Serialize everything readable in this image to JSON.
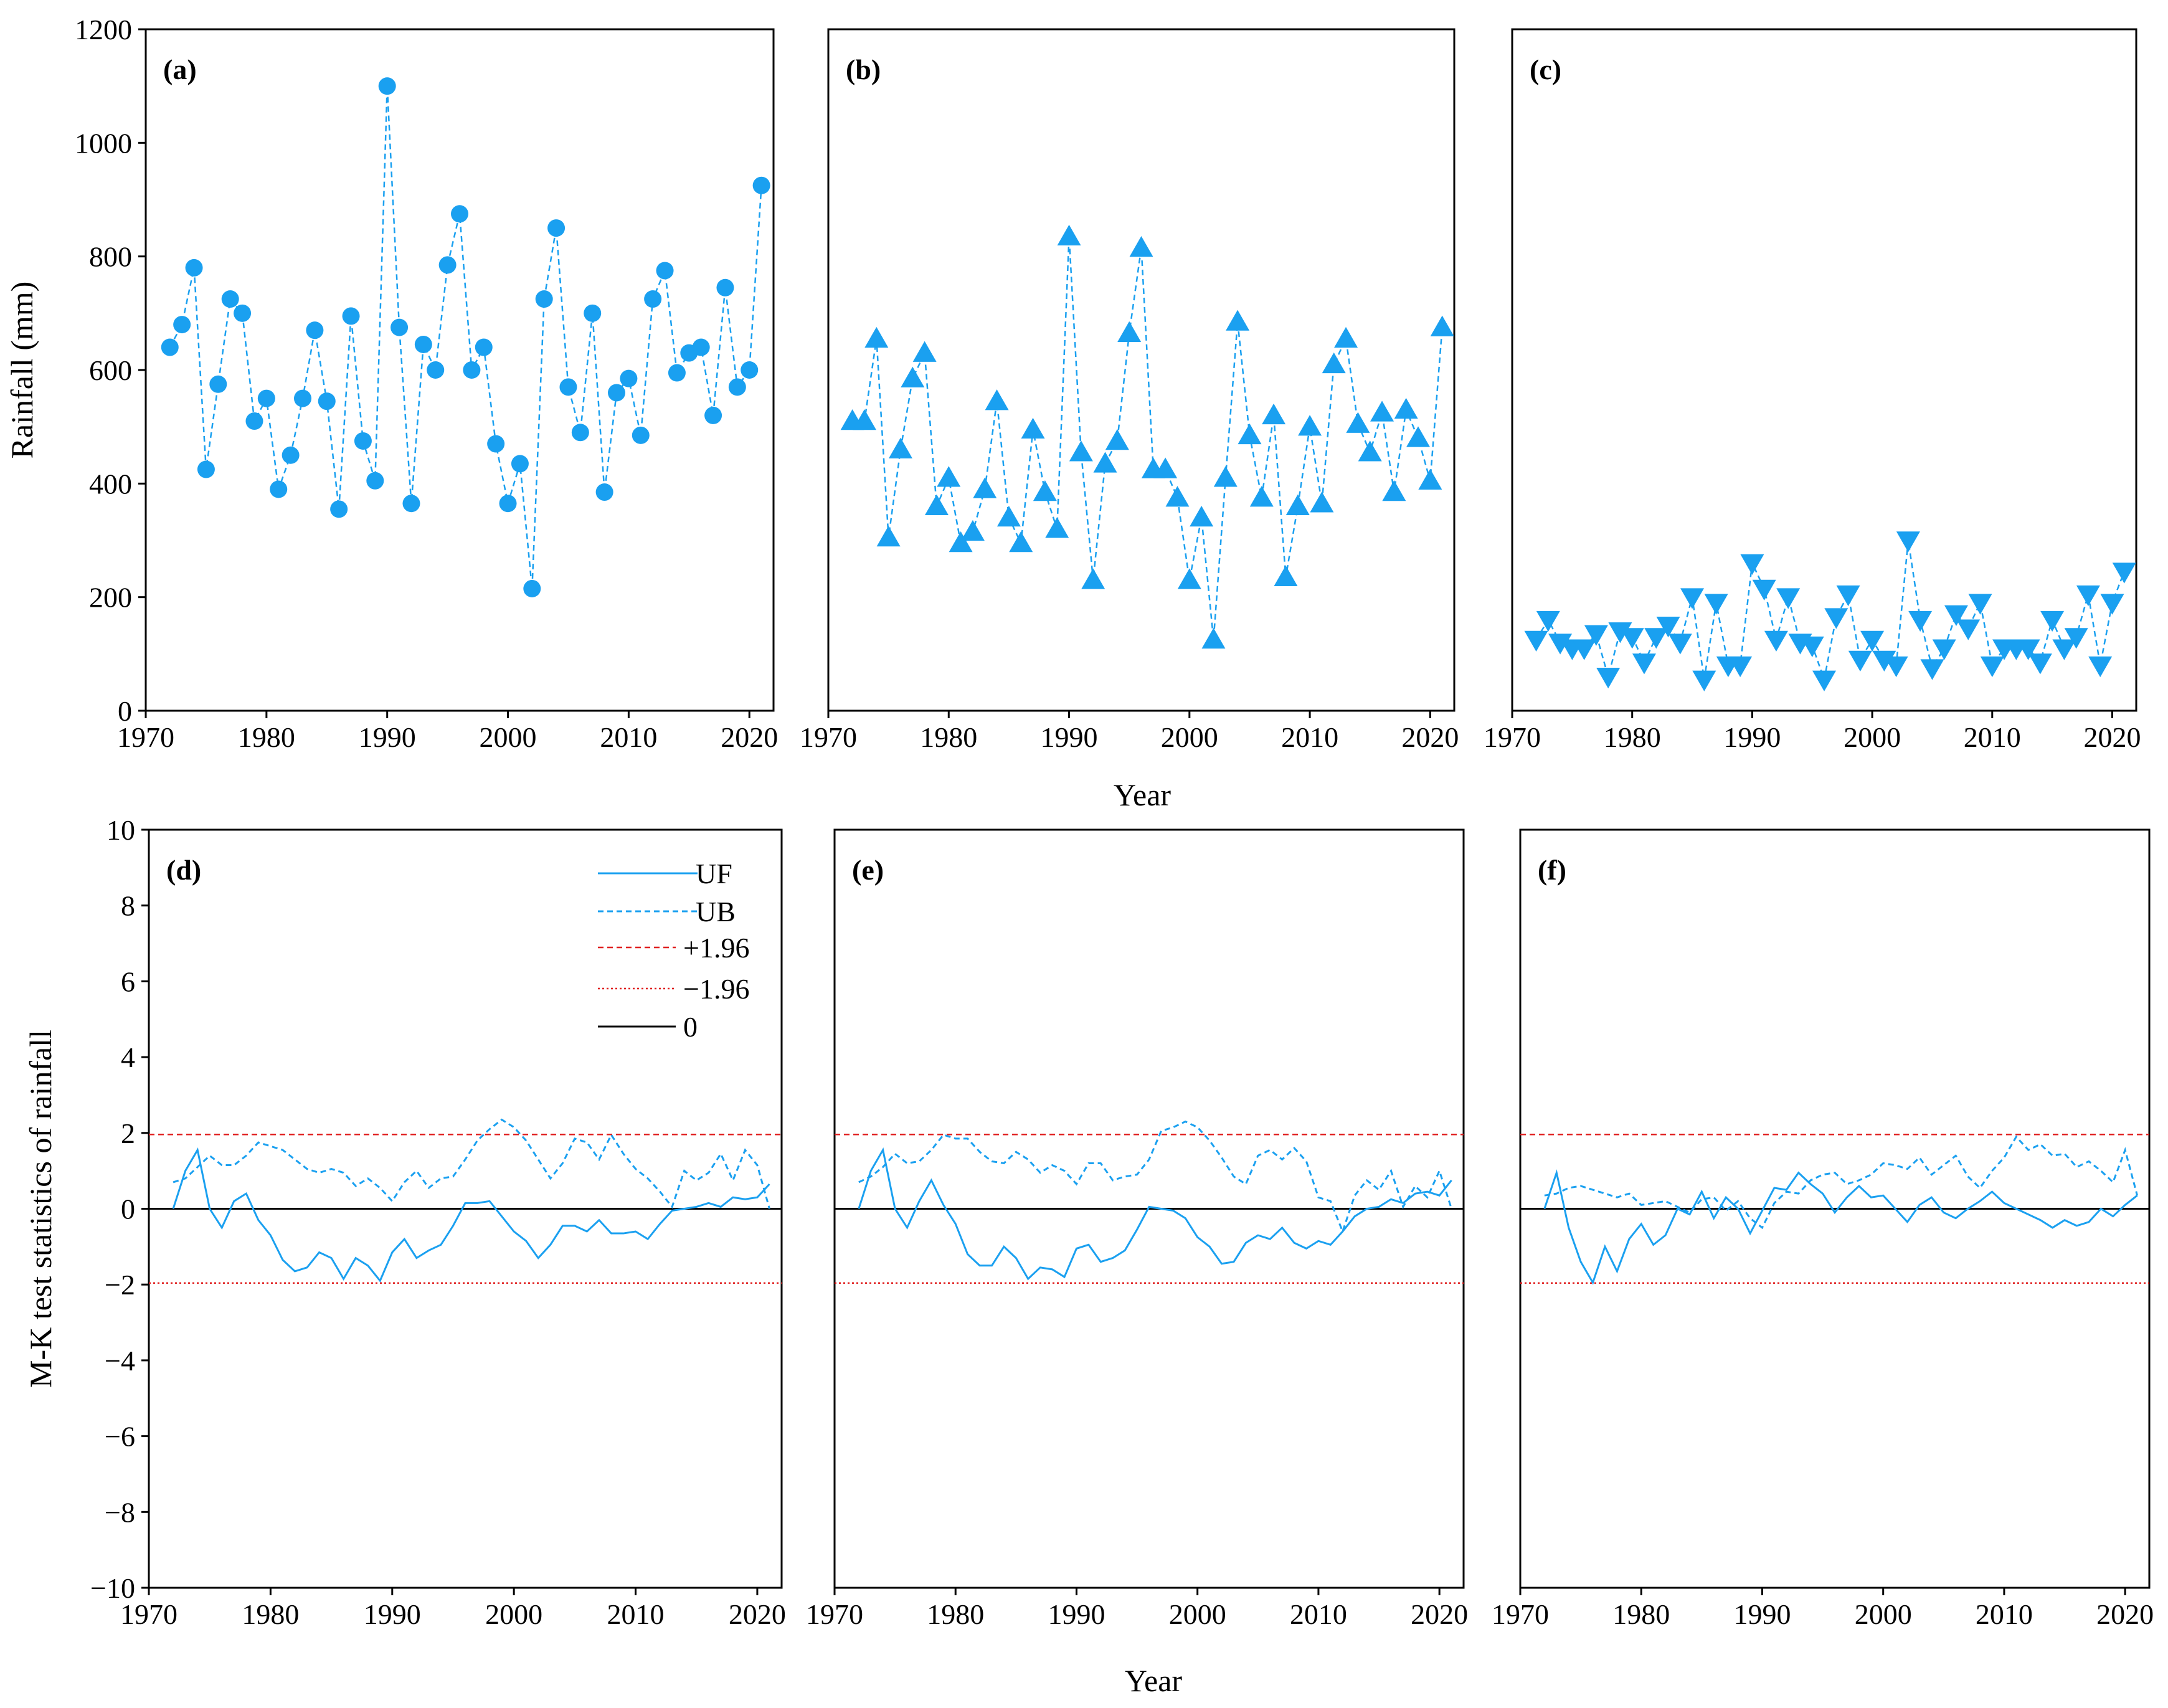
{
  "colors": {
    "series": "#1aa0f0",
    "ref_pos": "#e02020",
    "ref_neg": "#e02020",
    "zero": "#000000"
  },
  "chart_data": [
    {
      "id": "a",
      "type": "line",
      "panel_label": "(a)",
      "marker": "circle",
      "ylabel": "Rainfall (mm)",
      "xlim": [
        1970,
        2022
      ],
      "ylim": [
        0,
        1200
      ],
      "xticks": [
        "1970",
        "1980",
        "1990",
        "2000",
        "2010",
        "2020"
      ],
      "yticks": [
        "0",
        "200",
        "400",
        "600",
        "800",
        "1000",
        "1200"
      ],
      "x": [
        1972,
        1973,
        1974,
        1975,
        1976,
        1977,
        1978,
        1979,
        1980,
        1981,
        1982,
        1983,
        1984,
        1985,
        1986,
        1987,
        1988,
        1989,
        1990,
        1991,
        1992,
        1993,
        1994,
        1995,
        1996,
        1997,
        1998,
        1999,
        2000,
        2001,
        2002,
        2003,
        2004,
        2005,
        2006,
        2007,
        2008,
        2009,
        2010,
        2011,
        2012,
        2013,
        2014,
        2015,
        2016,
        2017,
        2018,
        2019,
        2020,
        2021
      ],
      "values": [
        640,
        680,
        780,
        425,
        575,
        725,
        700,
        510,
        550,
        390,
        450,
        550,
        670,
        545,
        355,
        695,
        475,
        405,
        1100,
        675,
        365,
        645,
        600,
        785,
        875,
        600,
        640,
        470,
        365,
        435,
        215,
        725,
        850,
        570,
        490,
        700,
        385,
        560,
        585,
        485,
        725,
        775,
        595,
        630,
        640,
        520,
        745,
        570,
        600,
        925
      ]
    },
    {
      "id": "b",
      "type": "line",
      "panel_label": "(b)",
      "marker": "triangle-up",
      "ylabel": "",
      "xlim": [
        1970,
        2022
      ],
      "ylim": [
        0,
        1200
      ],
      "xticks": [
        "1970",
        "1980",
        "1990",
        "2000",
        "2010",
        "2020"
      ],
      "yticks": [],
      "x": [
        1972,
        1973,
        1974,
        1975,
        1976,
        1977,
        1978,
        1979,
        1980,
        1981,
        1982,
        1983,
        1984,
        1985,
        1986,
        1987,
        1988,
        1989,
        1990,
        1991,
        1992,
        1993,
        1994,
        1995,
        1996,
        1997,
        1998,
        1999,
        2000,
        2001,
        2002,
        2003,
        2004,
        2005,
        2006,
        2007,
        2008,
        2009,
        2010,
        2011,
        2012,
        2013,
        2014,
        2015,
        2016,
        2017,
        2018,
        2019,
        2020,
        2021
      ],
      "values": [
        510,
        510,
        655,
        305,
        460,
        585,
        630,
        360,
        410,
        295,
        315,
        390,
        545,
        340,
        295,
        495,
        385,
        320,
        835,
        455,
        230,
        435,
        475,
        665,
        815,
        425,
        425,
        375,
        230,
        340,
        125,
        410,
        685,
        485,
        375,
        520,
        235,
        360,
        500,
        365,
        610,
        655,
        505,
        455,
        525,
        385,
        530,
        480,
        405,
        675
      ]
    },
    {
      "id": "c",
      "type": "line",
      "panel_label": "(c)",
      "marker": "triangle-down",
      "ylabel": "",
      "xlim": [
        1970,
        2022
      ],
      "ylim": [
        0,
        1200
      ],
      "xticks": [
        "1970",
        "1980",
        "1990",
        "2000",
        "2010",
        "2020"
      ],
      "yticks": [],
      "x": [
        1972,
        1973,
        1974,
        1975,
        1976,
        1977,
        1978,
        1979,
        1980,
        1981,
        1982,
        1983,
        1984,
        1985,
        1986,
        1987,
        1988,
        1989,
        1990,
        1991,
        1992,
        1993,
        1994,
        1995,
        1996,
        1997,
        1998,
        1999,
        2000,
        2001,
        2002,
        2003,
        2004,
        2005,
        2006,
        2007,
        2008,
        2009,
        2010,
        2011,
        2012,
        2013,
        2014,
        2015,
        2016,
        2017,
        2018,
        2019,
        2020,
        2021
      ],
      "values": [
        125,
        160,
        120,
        110,
        110,
        135,
        60,
        140,
        130,
        85,
        130,
        150,
        120,
        200,
        55,
        190,
        80,
        80,
        260,
        215,
        125,
        200,
        120,
        115,
        55,
        165,
        205,
        90,
        125,
        90,
        80,
        300,
        160,
        75,
        110,
        170,
        145,
        190,
        80,
        110,
        110,
        110,
        85,
        160,
        110,
        130,
        205,
        80,
        190,
        245
      ]
    },
    {
      "id": "d",
      "type": "line",
      "panel_label": "(d)",
      "ylabel": "M-K test statistics of rainfall",
      "xlabel": "Year",
      "xlim": [
        1970,
        2022
      ],
      "ylim": [
        -10,
        10
      ],
      "xticks": [
        "1970",
        "1980",
        "1990",
        "2000",
        "2010",
        "2020"
      ],
      "yticks": [
        "−10",
        "−8",
        "−6",
        "−4",
        "−2",
        "0",
        "2",
        "4",
        "6",
        "8",
        "10"
      ],
      "reference_lines": [
        1.96,
        -1.96,
        0
      ],
      "legend": {
        "position": "top-left",
        "entries": [
          "UF",
          "UB",
          "+1.96",
          "−1.96",
          "0"
        ]
      },
      "x": [
        1972,
        1973,
        1974,
        1975,
        1976,
        1977,
        1978,
        1979,
        1980,
        1981,
        1982,
        1983,
        1984,
        1985,
        1986,
        1987,
        1988,
        1989,
        1990,
        1991,
        1992,
        1993,
        1994,
        1995,
        1996,
        1997,
        1998,
        1999,
        2000,
        2001,
        2002,
        2003,
        2004,
        2005,
        2006,
        2007,
        2008,
        2009,
        2010,
        2011,
        2012,
        2013,
        2014,
        2015,
        2016,
        2017,
        2018,
        2019,
        2020,
        2021
      ],
      "series": [
        {
          "name": "UF",
          "values": [
            0,
            1.0,
            1.55,
            0,
            -0.5,
            0.2,
            0.4,
            -0.3,
            -0.7,
            -1.35,
            -1.65,
            -1.55,
            -1.15,
            -1.3,
            -1.85,
            -1.3,
            -1.5,
            -1.9,
            -1.15,
            -0.8,
            -1.3,
            -1.1,
            -0.95,
            -0.45,
            0.15,
            0.15,
            0.2,
            -0.2,
            -0.6,
            -0.85,
            -1.3,
            -0.95,
            -0.45,
            -0.45,
            -0.6,
            -0.3,
            -0.65,
            -0.65,
            -0.6,
            -0.8,
            -0.4,
            -0.05,
            0,
            0.05,
            0.15,
            0.05,
            0.3,
            0.25,
            0.3,
            0.65
          ]
        },
        {
          "name": "UB",
          "values": [
            0.7,
            0.8,
            1.1,
            1.4,
            1.15,
            1.15,
            1.4,
            1.75,
            1.65,
            1.55,
            1.3,
            1.05,
            0.95,
            1.05,
            0.95,
            0.6,
            0.8,
            0.55,
            0.2,
            0.7,
            1.0,
            0.55,
            0.8,
            0.85,
            1.3,
            1.8,
            2.1,
            2.35,
            2.15,
            1.8,
            1.3,
            0.8,
            1.2,
            1.85,
            1.75,
            1.3,
            1.95,
            1.45,
            1.05,
            0.8,
            0.45,
            0.05,
            1.0,
            0.75,
            0.95,
            1.45,
            0.75,
            1.55,
            1.15,
            0
          ]
        }
      ]
    },
    {
      "id": "e",
      "type": "line",
      "panel_label": "(e)",
      "xlabel": "Year",
      "ylabel": "",
      "xlim": [
        1970,
        2022
      ],
      "ylim": [
        -10,
        10
      ],
      "xticks": [
        "1970",
        "1980",
        "1990",
        "2000",
        "2010",
        "2020"
      ],
      "yticks": [],
      "reference_lines": [
        1.96,
        -1.96,
        0
      ],
      "x": [
        1972,
        1973,
        1974,
        1975,
        1976,
        1977,
        1978,
        1979,
        1980,
        1981,
        1982,
        1983,
        1984,
        1985,
        1986,
        1987,
        1988,
        1989,
        1990,
        1991,
        1992,
        1993,
        1994,
        1995,
        1996,
        1997,
        1998,
        1999,
        2000,
        2001,
        2002,
        2003,
        2004,
        2005,
        2006,
        2007,
        2008,
        2009,
        2010,
        2011,
        2012,
        2013,
        2014,
        2015,
        2016,
        2017,
        2018,
        2019,
        2020,
        2021
      ],
      "series": [
        {
          "name": "UF",
          "values": [
            0,
            1.0,
            1.55,
            0,
            -0.5,
            0.2,
            0.75,
            0.1,
            -0.4,
            -1.2,
            -1.5,
            -1.5,
            -1.0,
            -1.3,
            -1.85,
            -1.55,
            -1.6,
            -1.8,
            -1.05,
            -0.95,
            -1.4,
            -1.3,
            -1.1,
            -0.55,
            0.05,
            0,
            -0.05,
            -0.25,
            -0.75,
            -1.0,
            -1.45,
            -1.4,
            -0.9,
            -0.7,
            -0.8,
            -0.5,
            -0.9,
            -1.05,
            -0.85,
            -0.95,
            -0.6,
            -0.2,
            0,
            0.05,
            0.25,
            0.15,
            0.4,
            0.45,
            0.35,
            0.75
          ]
        },
        {
          "name": "UB",
          "values": [
            0.7,
            0.85,
            1.1,
            1.45,
            1.2,
            1.25,
            1.55,
            1.95,
            1.85,
            1.85,
            1.5,
            1.25,
            1.2,
            1.5,
            1.3,
            0.95,
            1.15,
            1.0,
            0.65,
            1.2,
            1.2,
            0.75,
            0.85,
            0.9,
            1.3,
            2.05,
            2.15,
            2.3,
            2.15,
            1.8,
            1.35,
            0.85,
            0.65,
            1.4,
            1.55,
            1.3,
            1.6,
            1.25,
            0.3,
            0.2,
            -0.6,
            0.35,
            0.75,
            0.5,
            1.0,
            0.05,
            0.6,
            0.3,
            1.0,
            0
          ]
        }
      ]
    },
    {
      "id": "f",
      "type": "line",
      "panel_label": "(f)",
      "xlabel": "Year",
      "ylabel": "",
      "xlim": [
        1970,
        2022
      ],
      "ylim": [
        -10,
        10
      ],
      "xticks": [
        "1970",
        "1980",
        "1990",
        "2000",
        "2010",
        "2020"
      ],
      "yticks": [],
      "reference_lines": [
        1.96,
        -1.96,
        0
      ],
      "x": [
        1972,
        1973,
        1974,
        1975,
        1976,
        1977,
        1978,
        1979,
        1980,
        1981,
        1982,
        1983,
        1984,
        1985,
        1986,
        1987,
        1988,
        1989,
        1990,
        1991,
        1992,
        1993,
        1994,
        1995,
        1996,
        1997,
        1998,
        1999,
        2000,
        2001,
        2002,
        2003,
        2004,
        2005,
        2006,
        2007,
        2008,
        2009,
        2010,
        2011,
        2012,
        2013,
        2014,
        2015,
        2016,
        2017,
        2018,
        2019,
        2020,
        2021
      ],
      "series": [
        {
          "name": "UF",
          "values": [
            0,
            0.95,
            -0.5,
            -1.4,
            -1.95,
            -1.0,
            -1.65,
            -0.8,
            -0.4,
            -0.95,
            -0.7,
            0,
            -0.15,
            0.45,
            -0.25,
            0.3,
            0,
            -0.65,
            -0.05,
            0.55,
            0.5,
            0.95,
            0.65,
            0.4,
            -0.1,
            0.3,
            0.6,
            0.3,
            0.35,
            0,
            -0.35,
            0.1,
            0.3,
            -0.1,
            -0.25,
            0,
            0.2,
            0.45,
            0.15,
            0,
            -0.15,
            -0.3,
            -0.5,
            -0.3,
            -0.45,
            -0.35,
            0,
            -0.2,
            0.1,
            0.35
          ]
        },
        {
          "name": "UB",
          "values": [
            0.35,
            0.4,
            0.55,
            0.6,
            0.5,
            0.4,
            0.3,
            0.4,
            0.1,
            0.15,
            0.2,
            0.05,
            -0.1,
            0.25,
            0.3,
            -0.05,
            0.2,
            -0.25,
            -0.5,
            0.15,
            0.45,
            0.4,
            0.75,
            0.9,
            0.95,
            0.65,
            0.75,
            0.9,
            1.2,
            1.15,
            1.05,
            1.35,
            0.9,
            1.15,
            1.4,
            0.85,
            0.55,
            1.0,
            1.35,
            1.9,
            1.55,
            1.7,
            1.4,
            1.45,
            1.1,
            1.25,
            1.0,
            0.7,
            1.55,
            0.35
          ]
        }
      ]
    }
  ]
}
